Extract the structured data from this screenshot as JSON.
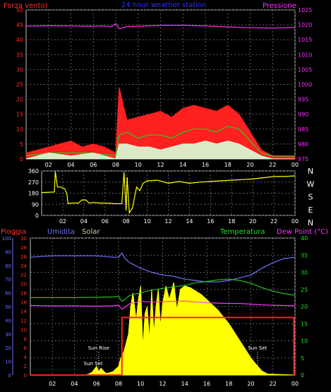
{
  "header": {
    "left_title": "Forza vento)",
    "center_title": "24 hour weather station",
    "right_title": "Pressione",
    "color_left": "#ff3030",
    "color_center": "#3030ff",
    "color_right": "#ff30ff"
  },
  "chart_data": [
    {
      "type": "line",
      "panel": "wind-pressure",
      "title": "24 hour weather station",
      "x_ticks": [
        "02",
        "04",
        "06",
        "08",
        "10",
        "12",
        "14",
        "16",
        "18",
        "20",
        "22",
        "00"
      ],
      "x_range": [
        0,
        24
      ],
      "ylabel": "Forza vento)",
      "y2label": "Pressione",
      "ylim": [
        0,
        50
      ],
      "y_ticks": [
        0,
        5,
        10,
        15,
        20,
        25,
        30,
        35,
        40,
        45,
        50
      ],
      "y2lim": [
        975,
        1025
      ],
      "y2_ticks": [
        975,
        980,
        985,
        990,
        995,
        1000,
        1005,
        1010,
        1015,
        1020,
        1025
      ],
      "series": [
        {
          "role": "wind-gust",
          "color": "#ff2020",
          "x": [
            0,
            1,
            2,
            3,
            4,
            5,
            6,
            7,
            8,
            8.3,
            9,
            10,
            11,
            12,
            13,
            14,
            15,
            16,
            17,
            18,
            19,
            20,
            21,
            22,
            23,
            24
          ],
          "y": [
            2,
            3,
            4,
            5,
            6,
            4,
            5,
            4,
            2,
            24,
            13,
            14,
            15,
            16,
            14,
            17,
            18,
            17,
            16,
            18,
            15,
            9,
            3,
            1,
            1,
            1
          ]
        },
        {
          "role": "wind-average",
          "color": "#20d020",
          "x": [
            0,
            2,
            4,
            6,
            8,
            8.3,
            9,
            10,
            11,
            12,
            13,
            14,
            15,
            16,
            17,
            18,
            19,
            20,
            21,
            22,
            24
          ],
          "y": [
            1,
            2,
            2,
            2,
            1,
            8,
            9,
            7,
            8,
            8,
            7,
            9,
            10,
            10,
            9,
            11,
            10,
            6,
            2,
            1,
            1
          ]
        },
        {
          "role": "wind-speed",
          "color": "#d8ffd8",
          "x": [
            0,
            2,
            4,
            6,
            8,
            8.3,
            9,
            10,
            11,
            12,
            13,
            14,
            15,
            16,
            17,
            18,
            19,
            20,
            21,
            22,
            24
          ],
          "y": [
            0,
            2,
            1,
            2,
            0,
            5,
            5,
            4,
            4,
            3,
            4,
            5,
            5,
            6,
            5,
            6,
            5,
            3,
            1,
            0,
            0
          ]
        },
        {
          "role": "pressure",
          "axis": "right",
          "color": "#ff30ff",
          "x": [
            0,
            2,
            4,
            6,
            7,
            7.6,
            8,
            8.3,
            9,
            10,
            12,
            14,
            16,
            18,
            20,
            22,
            24
          ],
          "y": [
            1019.5,
            1019.7,
            1019.6,
            1019.5,
            1019.6,
            1019.3,
            1020.4,
            1018.7,
            1019.4,
            1019.5,
            1019.8,
            1019.8,
            1019.6,
            1019.3,
            1019.0,
            1018.9,
            1019.1
          ]
        }
      ]
    },
    {
      "type": "line",
      "panel": "wind-direction",
      "x_ticks": [
        "02",
        "04",
        "06",
        "08",
        "10",
        "12",
        "14",
        "16",
        "18",
        "20",
        "22",
        "00"
      ],
      "x_range": [
        0,
        24
      ],
      "ylim": [
        0,
        360
      ],
      "y_ticks": [
        0,
        90,
        180,
        270,
        360
      ],
      "compass_labels": [
        "N",
        "W",
        "S",
        "E",
        "N"
      ],
      "series": [
        {
          "role": "direction",
          "color": "#ffff00",
          "x": [
            0,
            1.2,
            1.3,
            1.5,
            1.8,
            2.2,
            2.4,
            2.5,
            2.8,
            3.5,
            3.8,
            4.2,
            4.5,
            5,
            5.5,
            6,
            7,
            7.6,
            7.8,
            8,
            8.1,
            8.3,
            8.6,
            9,
            9.3,
            9.6,
            10,
            11,
            12,
            13,
            14,
            15,
            16,
            17,
            18,
            19,
            20,
            21,
            22,
            23,
            24
          ],
          "y": [
            185,
            190,
            355,
            230,
            230,
            215,
            170,
            95,
            100,
            100,
            125,
            125,
            100,
            105,
            100,
            100,
            95,
            95,
            350,
            40,
            310,
            20,
            60,
            230,
            200,
            260,
            280,
            285,
            260,
            275,
            260,
            270,
            275,
            280,
            285,
            290,
            295,
            305,
            315,
            315,
            320
          ]
        }
      ]
    },
    {
      "type": "line",
      "panel": "weather",
      "x_ticks": [
        "02",
        "04",
        "06",
        "08",
        "10",
        "12",
        "14",
        "16",
        "18",
        "20",
        "22",
        "00"
      ],
      "x_range": [
        0,
        24
      ],
      "legend": [
        "Pioggia",
        "Umidita",
        "Solar",
        "Temperatura",
        "Dew Point (°C)"
      ],
      "left_axis_pioggia": {
        "label": "Pioggia",
        "ticks": [
          0,
          10,
          20,
          30,
          40,
          50,
          60,
          70,
          80,
          90,
          100
        ]
      },
      "left_axis_umidita": {
        "ticks": [
          0,
          2,
          4,
          6,
          8,
          10,
          12,
          14,
          16,
          18,
          20,
          22,
          24,
          26,
          28,
          30
        ]
      },
      "right_axis": {
        "label": "Dew Point (°C)",
        "range": [
          0,
          40
        ],
        "ticks": [
          0,
          5,
          10,
          15,
          20,
          25,
          30,
          35,
          40
        ]
      },
      "annotations": [
        {
          "text": "Sun Rise",
          "x": 6.2
        },
        {
          "text": "Sun Set",
          "x": 20.6
        },
        {
          "text": "Sun Set",
          "x": 5.7
        }
      ],
      "series": [
        {
          "role": "humidity",
          "name": "Umidita",
          "color": "#7070ff",
          "scale": "0-100",
          "x": [
            0,
            2,
            4,
            6,
            7.5,
            8,
            8.3,
            8.6,
            9,
            10,
            11,
            12,
            13,
            14,
            15,
            16,
            17,
            18,
            19,
            20,
            21,
            22,
            23,
            24
          ],
          "y": [
            86,
            87,
            87,
            87,
            86,
            86,
            89,
            85,
            82,
            78,
            75,
            73,
            72,
            70,
            69,
            68,
            68,
            69,
            71,
            73,
            78,
            82,
            85,
            86
          ]
        },
        {
          "role": "temperature",
          "name": "Temperatura",
          "color": "#20c020",
          "scale": "0-40",
          "x": [
            0,
            2,
            4,
            6,
            7.5,
            8,
            8.3,
            9,
            10,
            11,
            12,
            13,
            14,
            15,
            16,
            17,
            18,
            19,
            20,
            21,
            22,
            23,
            24
          ],
          "y": [
            22.6,
            22.6,
            22.6,
            22.7,
            22.8,
            23,
            21.5,
            23.2,
            24,
            24.8,
            25.3,
            25.8,
            26.1,
            27,
            27.3,
            27.8,
            28,
            27.6,
            26.8,
            25.5,
            24.5,
            23.8,
            23.3
          ]
        },
        {
          "role": "dew-point",
          "name": "Dew Point (°C)",
          "color": "#ff30ff",
          "scale": "0-40",
          "x": [
            0,
            2,
            4,
            6,
            7.5,
            8,
            8.3,
            9,
            10,
            11,
            12,
            13,
            14,
            15,
            16,
            17,
            18,
            19,
            20,
            21,
            22,
            23,
            24
          ],
          "y": [
            20.3,
            20.2,
            20.2,
            20.1,
            20.2,
            20.4,
            19.2,
            20.8,
            21.5,
            21.3,
            21.4,
            21.5,
            21.6,
            21.3,
            21.1,
            21.0,
            20.9,
            20.9,
            20.7,
            20.5,
            20.4,
            20.3,
            20.2
          ]
        },
        {
          "role": "solar",
          "name": "Solar",
          "color": "#ffff00",
          "scale": "0-40",
          "x": [
            0,
            5,
            5.3,
            5.6,
            6,
            6.2,
            6.4,
            6.8,
            7,
            7.5,
            8,
            8.2,
            8.5,
            8.9,
            9.1,
            9.3,
            9.6,
            9.8,
            10,
            10.2,
            10.4,
            10.6,
            10.8,
            11,
            11.2,
            11.4,
            11.6,
            11.8,
            12,
            12.3,
            12.6,
            13,
            13.3,
            13.6,
            14,
            14.5,
            15,
            15.5,
            16,
            16.5,
            17,
            17.5,
            18,
            18.5,
            19,
            19.5,
            20,
            20.5,
            21,
            21.5,
            24
          ],
          "y": [
            0,
            0,
            0.3,
            0.8,
            2.5,
            1,
            2,
            0.6,
            0.5,
            1,
            2.5,
            5,
            7,
            12,
            20,
            24,
            16,
            22,
            26,
            8,
            18,
            20,
            10,
            25,
            12,
            20,
            25,
            14,
            21,
            26,
            22,
            27,
            19,
            25,
            26,
            25.5,
            24.5,
            23.5,
            22,
            20.5,
            19,
            17,
            15,
            12.5,
            10,
            7.5,
            5,
            3,
            1.2,
            0.3,
            0
          ]
        },
        {
          "role": "rain",
          "name": "Pioggia",
          "color": "#ff2020",
          "scale": "0-100",
          "x": [
            0,
            8.3,
            8.31,
            23.9,
            23.91,
            24
          ],
          "y": [
            0,
            0,
            42,
            42,
            0,
            0
          ]
        }
      ]
    }
  ],
  "legend_colors": {
    "pioggia": "#ff3030",
    "umidita": "#7070ff",
    "solar": "#d0d0a0",
    "temperatura": "#20e020",
    "dewpoint": "#ff30ff"
  }
}
